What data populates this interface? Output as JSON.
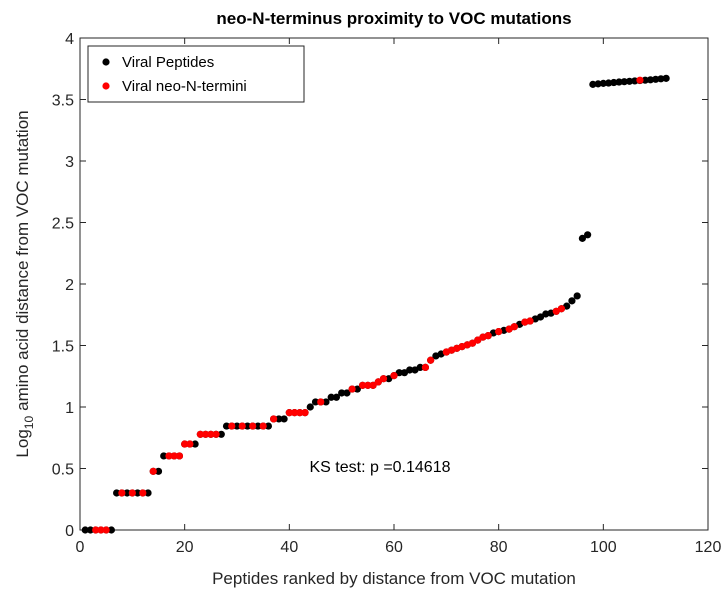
{
  "chart_data": {
    "type": "scatter",
    "title": "neo-N-terminus proximity to VOC mutations",
    "xlabel": "Peptides ranked by distance from VOC mutation",
    "ylabel": [
      "Log",
      "10",
      "amino acid distance from VOC mutation"
    ],
    "annotation": "KS test: p =0.14618",
    "xlim": [
      0,
      120
    ],
    "xticks": [
      0,
      20,
      40,
      60,
      80,
      100,
      120
    ],
    "ylim": [
      0,
      4
    ],
    "yticks": [
      0,
      0.5,
      1,
      1.5,
      2,
      2.5,
      3,
      3.5,
      4
    ],
    "legend": "upper-left",
    "series": [
      {
        "name": "Viral Peptides",
        "color": "#000000",
        "x": [
          1,
          2,
          3,
          4,
          5,
          6,
          7,
          8,
          9,
          10,
          11,
          12,
          13,
          14,
          15,
          16,
          17,
          18,
          19,
          20,
          21,
          22,
          23,
          24,
          25,
          26,
          27,
          28,
          29,
          30,
          31,
          32,
          33,
          34,
          35,
          36,
          37,
          38,
          39,
          40,
          41,
          42,
          43,
          44,
          45,
          46,
          47,
          48,
          49,
          50,
          51,
          52,
          53,
          54,
          55,
          56,
          57,
          58,
          59,
          60,
          61,
          62,
          63,
          64,
          65,
          66,
          67,
          68,
          69,
          70,
          71,
          72,
          73,
          74,
          75,
          76,
          77,
          78,
          79,
          80,
          81,
          82,
          83,
          84,
          85,
          86,
          87,
          88,
          89,
          90,
          91,
          92,
          93,
          94,
          95,
          96,
          97,
          98,
          99,
          100,
          101,
          102,
          103,
          104,
          105,
          106,
          107,
          108,
          109,
          110,
          111,
          112
        ],
        "values": [
          0,
          0,
          0,
          0,
          0,
          0,
          0.301,
          0.301,
          0.301,
          0.301,
          0.301,
          0.301,
          0.301,
          0.477,
          0.477,
          0.602,
          0.602,
          0.602,
          0.602,
          0.699,
          0.699,
          0.699,
          0.778,
          0.778,
          0.778,
          0.778,
          0.778,
          0.845,
          0.845,
          0.845,
          0.845,
          0.845,
          0.845,
          0.845,
          0.845,
          0.845,
          0.903,
          0.903,
          0.903,
          0.954,
          0.954,
          0.954,
          0.954,
          1,
          1.041,
          1.041,
          1.041,
          1.079,
          1.079,
          1.114,
          1.114,
          1.146,
          1.146,
          1.176,
          1.176,
          1.176,
          1.204,
          1.23,
          1.23,
          1.255,
          1.279,
          1.279,
          1.301,
          1.301,
          1.322,
          1.322,
          1.38,
          1.415,
          1.431,
          1.447,
          1.462,
          1.477,
          1.491,
          1.505,
          1.519,
          1.544,
          1.568,
          1.58,
          1.602,
          1.613,
          1.623,
          1.633,
          1.653,
          1.672,
          1.69,
          1.699,
          1.716,
          1.732,
          1.756,
          1.763,
          1.778,
          1.799,
          1.82,
          1.863,
          1.903,
          2.371,
          2.4,
          3.623,
          3.627,
          3.631,
          3.634,
          3.638,
          3.642,
          3.645,
          3.648,
          3.651,
          3.654,
          3.657,
          3.66,
          3.664,
          3.668,
          3.672
        ]
      },
      {
        "name": "Viral neo-N-termini",
        "color": "#ff0000",
        "x": [
          3,
          4,
          5,
          8,
          10,
          12,
          14,
          17,
          18,
          19,
          20,
          21,
          23,
          24,
          25,
          26,
          29,
          31,
          33,
          35,
          37,
          40,
          41,
          42,
          43,
          46,
          52,
          54,
          55,
          56,
          57,
          58,
          60,
          66,
          67,
          70,
          71,
          72,
          73,
          74,
          75,
          76,
          77,
          78,
          80,
          82,
          83,
          85,
          86,
          91,
          92,
          107
        ],
        "values": [
          0,
          0,
          0,
          0.301,
          0.301,
          0.301,
          0.477,
          0.602,
          0.602,
          0.602,
          0.699,
          0.699,
          0.778,
          0.778,
          0.778,
          0.778,
          0.845,
          0.845,
          0.845,
          0.845,
          0.903,
          0.954,
          0.954,
          0.954,
          0.954,
          1.041,
          1.146,
          1.176,
          1.176,
          1.176,
          1.204,
          1.23,
          1.255,
          1.322,
          1.38,
          1.447,
          1.462,
          1.477,
          1.491,
          1.505,
          1.519,
          1.544,
          1.568,
          1.58,
          1.613,
          1.633,
          1.653,
          1.69,
          1.699,
          1.778,
          1.799,
          3.657
        ]
      }
    ]
  }
}
